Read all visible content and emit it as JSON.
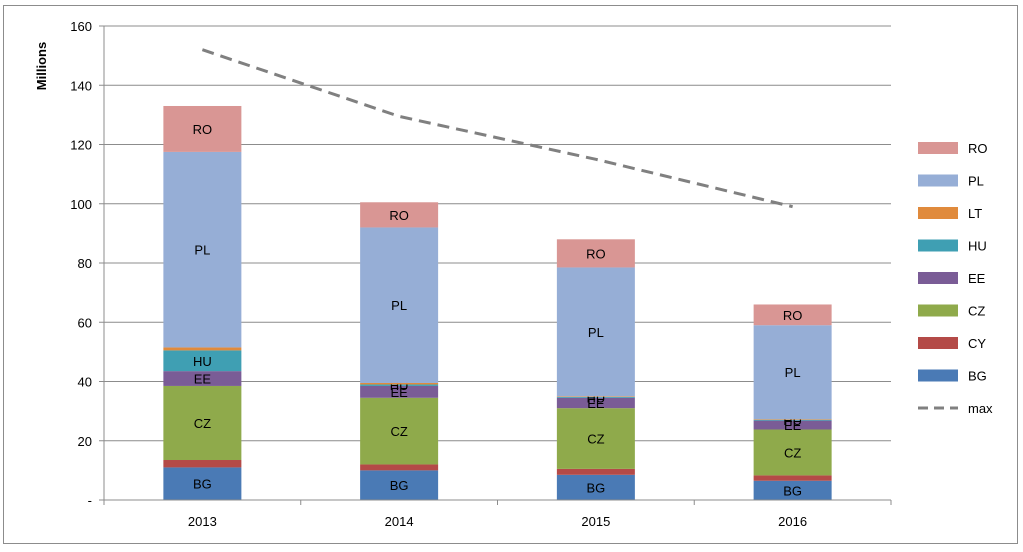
{
  "chart_data": {
    "type": "bar",
    "stacked": true,
    "categories": [
      "2013",
      "2014",
      "2015",
      "2016"
    ],
    "ylabel": "Millions",
    "ylim": [
      0,
      160
    ],
    "yticks": [
      {
        "value": 0,
        "label": "-"
      },
      {
        "value": 20,
        "label": "20"
      },
      {
        "value": 40,
        "label": "40"
      },
      {
        "value": 60,
        "label": "60"
      },
      {
        "value": 80,
        "label": "80"
      },
      {
        "value": 100,
        "label": "100"
      },
      {
        "value": 120,
        "label": "120"
      },
      {
        "value": 140,
        "label": "140"
      },
      {
        "value": 160,
        "label": "160"
      }
    ],
    "grid": true,
    "legend_position": "right",
    "series": [
      {
        "name": "BG",
        "color": "#4a7ab5",
        "values": [
          11,
          10,
          8.5,
          6.5
        ],
        "show_label": true
      },
      {
        "name": "CY",
        "color": "#b44a47",
        "values": [
          2.5,
          2,
          2,
          1.8
        ],
        "show_label": false
      },
      {
        "name": "CZ",
        "color": "#8faa4b",
        "values": [
          25,
          22.5,
          20.5,
          15.5
        ],
        "show_label": true
      },
      {
        "name": "EE",
        "color": "#7a5c96",
        "values": [
          5,
          4,
          3.5,
          3
        ],
        "show_label": true
      },
      {
        "name": "HU",
        "color": "#3f9fb3",
        "values": [
          7,
          0.5,
          0.3,
          0.3
        ],
        "show_label": true
      },
      {
        "name": "LT",
        "color": "#e08a3c",
        "values": [
          1,
          0.5,
          0.2,
          0.2
        ],
        "show_label": false
      },
      {
        "name": "PL",
        "color": "#96aed6",
        "values": [
          66,
          52.5,
          43.5,
          31.7
        ],
        "show_label": true
      },
      {
        "name": "RO",
        "color": "#d99694",
        "values": [
          15.5,
          8.5,
          9.5,
          7
        ],
        "show_label": true
      }
    ],
    "line_series": {
      "name": "max",
      "color": "#808080",
      "dashed": true,
      "values": [
        152,
        129.5,
        115,
        99
      ]
    },
    "legend_order": [
      "RO",
      "PL",
      "LT",
      "HU",
      "EE",
      "CZ",
      "CY",
      "BG",
      "max"
    ]
  }
}
